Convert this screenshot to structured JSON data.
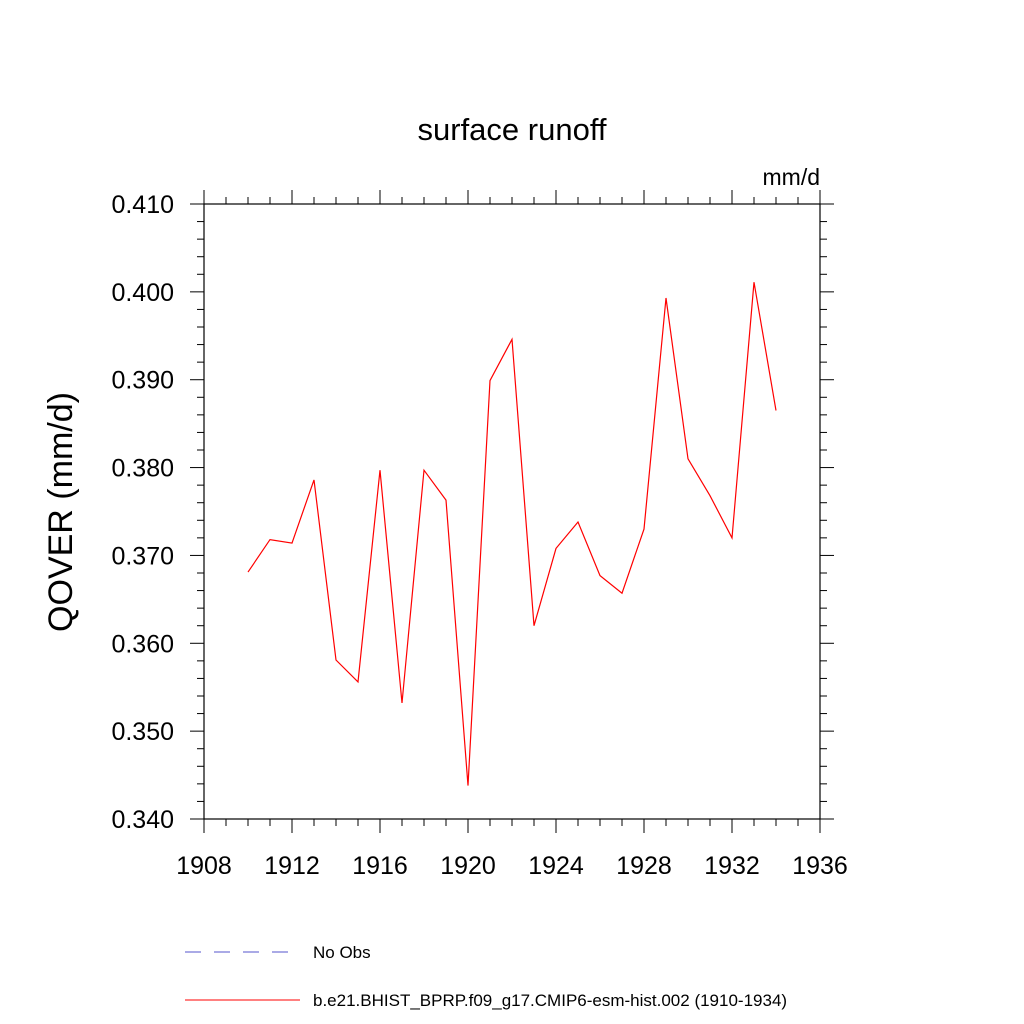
{
  "chart_data": {
    "type": "line",
    "title": "surface runoff",
    "units": "mm/d",
    "xlabel": "",
    "ylabel": "QOVER  (mm/d)",
    "xlim": [
      1908,
      1936
    ],
    "ylim": [
      0.34,
      0.41
    ],
    "x_ticks": [
      1908,
      1912,
      1916,
      1920,
      1924,
      1928,
      1932,
      1936
    ],
    "x_tick_labels": [
      "1908",
      "1912",
      "1916",
      "1920",
      "1924",
      "1928",
      "1932",
      "1936"
    ],
    "y_ticks": [
      0.34,
      0.35,
      0.36,
      0.37,
      0.38,
      0.39,
      0.4,
      0.41
    ],
    "y_tick_labels": [
      "0.340",
      "0.350",
      "0.360",
      "0.370",
      "0.380",
      "0.390",
      "0.400",
      "0.410"
    ],
    "grid": false,
    "legend_position": "bottom",
    "legend": [
      {
        "label": "No Obs",
        "color": "#5555cc",
        "dashed": true
      },
      {
        "label": "b.e21.BHIST_BPRP.f09_g17.CMIP6-esm-hist.002 (1910-1934)",
        "color": "#ff0000",
        "dashed": false
      }
    ],
    "series": [
      {
        "name": "b.e21.BHIST_BPRP.f09_g17.CMIP6-esm-hist.002 (1910-1934)",
        "color": "#ff0000",
        "x": [
          1910,
          1911,
          1912,
          1913,
          1914,
          1915,
          1916,
          1917,
          1918,
          1919,
          1920,
          1921,
          1922,
          1923,
          1924,
          1925,
          1926,
          1927,
          1928,
          1929,
          1930,
          1931,
          1932,
          1933,
          1934
        ],
        "values": [
          0.3681,
          0.3718,
          0.3714,
          0.3786,
          0.3581,
          0.3556,
          0.3797,
          0.3532,
          0.3797,
          0.3763,
          0.3438,
          0.3899,
          0.3946,
          0.362,
          0.3708,
          0.3738,
          0.3677,
          0.3657,
          0.373,
          0.3993,
          0.381,
          0.3768,
          0.372,
          0.4011,
          0.3865
        ]
      }
    ]
  }
}
